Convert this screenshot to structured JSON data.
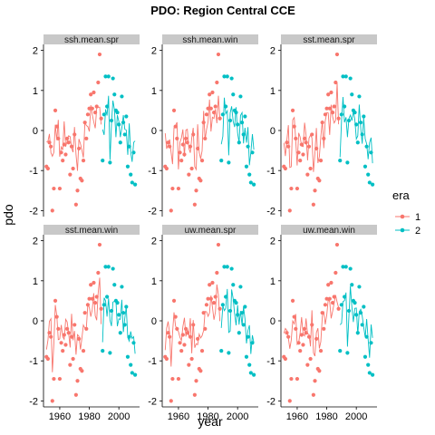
{
  "chart_data": {
    "type": "scatter",
    "title": "PDO: Region Central CCE",
    "xlabel": "year",
    "ylabel": "pdo",
    "xlim": [
      1949,
      2014
    ],
    "ylim": [
      -2.15,
      2.15
    ],
    "x_ticks": [
      1960,
      1980,
      2000
    ],
    "y_ticks": [
      -2,
      -1,
      0,
      1,
      2
    ],
    "grid": false,
    "legend_position": "right",
    "legend": {
      "title": "era",
      "entries": [
        {
          "label": "1",
          "color": "#F8766D"
        },
        {
          "label": "2",
          "color": "#00BFC4"
        }
      ]
    },
    "panels": [
      "ssh.mean.spr",
      "ssh.mean.win",
      "sst.mean.spr",
      "sst.mean.win",
      "uw.mean.spr",
      "uw.mean.win"
    ],
    "series": [
      {
        "era": "1",
        "color": "#F8766D",
        "points": [
          {
            "x": 1951,
            "y": -0.9
          },
          {
            "x": 1952,
            "y": -0.95
          },
          {
            "x": 1953,
            "y": -0.3
          },
          {
            "x": 1954,
            "y": -0.4
          },
          {
            "x": 1955,
            "y": -2.0
          },
          {
            "x": 1956,
            "y": -1.45
          },
          {
            "x": 1957,
            "y": 0.5
          },
          {
            "x": 1958,
            "y": 0.1
          },
          {
            "x": 1959,
            "y": -0.2
          },
          {
            "x": 1960,
            "y": -1.45
          },
          {
            "x": 1961,
            "y": -0.55
          },
          {
            "x": 1962,
            "y": -0.75
          },
          {
            "x": 1963,
            "y": -0.35
          },
          {
            "x": 1964,
            "y": -0.6
          },
          {
            "x": 1965,
            "y": -0.2
          },
          {
            "x": 1966,
            "y": -0.3
          },
          {
            "x": 1967,
            "y": -1.1
          },
          {
            "x": 1968,
            "y": -0.4
          },
          {
            "x": 1969,
            "y": -0.95
          },
          {
            "x": 1970,
            "y": -0.1
          },
          {
            "x": 1971,
            "y": -1.85
          },
          {
            "x": 1972,
            "y": -1.5
          },
          {
            "x": 1973,
            "y": -0.45
          },
          {
            "x": 1974,
            "y": -1.2
          },
          {
            "x": 1975,
            "y": -1.25
          },
          {
            "x": 1976,
            "y": -0.75
          },
          {
            "x": 1977,
            "y": 0.2
          },
          {
            "x": 1978,
            "y": -0.2
          },
          {
            "x": 1979,
            "y": 0.4
          },
          {
            "x": 1980,
            "y": 0.55
          },
          {
            "x": 1981,
            "y": 0.9
          },
          {
            "x": 1982,
            "y": 0.55
          },
          {
            "x": 1983,
            "y": 0.95
          },
          {
            "x": 1984,
            "y": 0.45
          },
          {
            "x": 1985,
            "y": 0.6
          },
          {
            "x": 1986,
            "y": 1.2
          },
          {
            "x": 1987,
            "y": 1.9
          },
          {
            "x": 1988,
            "y": 0.3
          }
        ]
      },
      {
        "era": "2",
        "color": "#00BFC4",
        "points": [
          {
            "x": 1989,
            "y": -0.75
          },
          {
            "x": 1990,
            "y": 0.4
          },
          {
            "x": 1991,
            "y": 1.35
          },
          {
            "x": 1992,
            "y": 0.6
          },
          {
            "x": 1993,
            "y": 1.35
          },
          {
            "x": 1994,
            "y": -0.8
          },
          {
            "x": 1995,
            "y": 0.25
          },
          {
            "x": 1996,
            "y": 1.3
          },
          {
            "x": 1997,
            "y": 0.9
          },
          {
            "x": 1998,
            "y": 0.5
          },
          {
            "x": 1999,
            "y": 0.45
          },
          {
            "x": 2000,
            "y": 0.15
          },
          {
            "x": 2001,
            "y": -0.3
          },
          {
            "x": 2002,
            "y": 0.85
          },
          {
            "x": 2003,
            "y": 0.2
          },
          {
            "x": 2004,
            "y": -0.1
          },
          {
            "x": 2005,
            "y": 0.35
          },
          {
            "x": 2006,
            "y": -0.9
          },
          {
            "x": 2007,
            "y": -0.4
          },
          {
            "x": 2008,
            "y": -1.1
          },
          {
            "x": 2009,
            "y": -1.3
          },
          {
            "x": 2010,
            "y": -0.55
          },
          {
            "x": 2011,
            "y": -1.35
          }
        ]
      }
    ]
  }
}
